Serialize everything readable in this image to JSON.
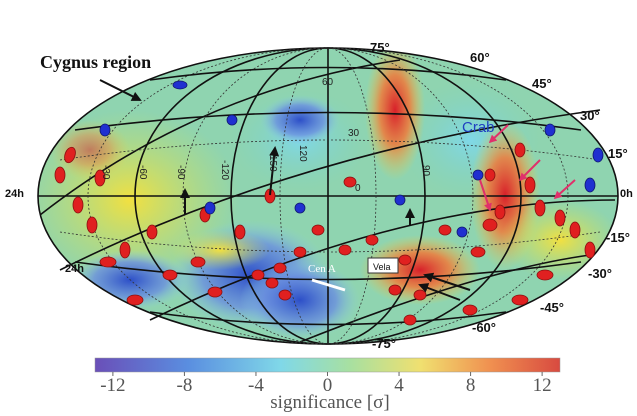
{
  "map": {
    "region_label": "Cygnus region",
    "sources": [
      "Crab",
      "Cen A",
      "Vela"
    ],
    "ra_labels": [
      "24h",
      "24h",
      "0h"
    ],
    "dec_labels": [
      "75°",
      "60°",
      "45°",
      "30°",
      "15°",
      "-15°",
      "-30°",
      "-45°",
      "-60°",
      "-75°"
    ],
    "grid_labels": [
      "60",
      "30",
      "0",
      "-30",
      "-60",
      "-90",
      "-120",
      "150",
      "120",
      "90"
    ]
  },
  "colorbar": {
    "title": "significance [σ]",
    "lim": [
      -13,
      13
    ],
    "ticks": [
      -12,
      -8,
      -4,
      0,
      4,
      8,
      12
    ]
  }
}
